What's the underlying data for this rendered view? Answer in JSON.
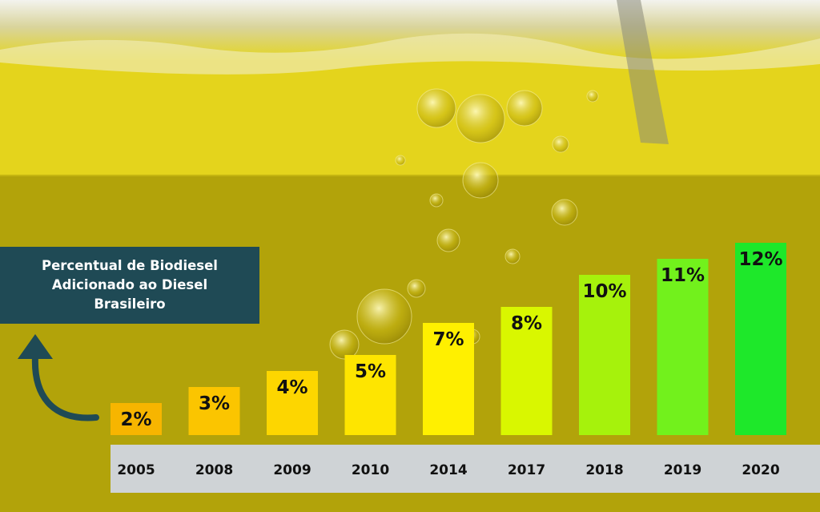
{
  "chart_data": {
    "type": "bar",
    "title": "Percentual de Biodiesel Adicionado ao Diesel Brasileiro",
    "xlabel": "",
    "ylabel": "",
    "ylim": [
      0,
      13
    ],
    "grid": false,
    "legend": "none",
    "categories": [
      "2005",
      "2008",
      "2009",
      "2010",
      "2014",
      "2017",
      "2018",
      "2019",
      "2020"
    ],
    "values": [
      2,
      3,
      4,
      5,
      7,
      8,
      10,
      11,
      12
    ],
    "data_labels": [
      "2%",
      "3%",
      "4%",
      "5%",
      "7%",
      "8%",
      "10%",
      "11%",
      "12%"
    ],
    "bar_colors": [
      "#f7b500",
      "#fbc500",
      "#fdd600",
      "#fee500",
      "#fff000",
      "#d9f700",
      "#a6f20c",
      "#72f11c",
      "#1ee82a"
    ]
  },
  "colors": {
    "title_box": "#1f4a55",
    "arrow": "#1f4a55",
    "axis_band": "#cfd3d6",
    "oil_light": "#e2d11a",
    "oil_dark": "#b8a80a"
  }
}
